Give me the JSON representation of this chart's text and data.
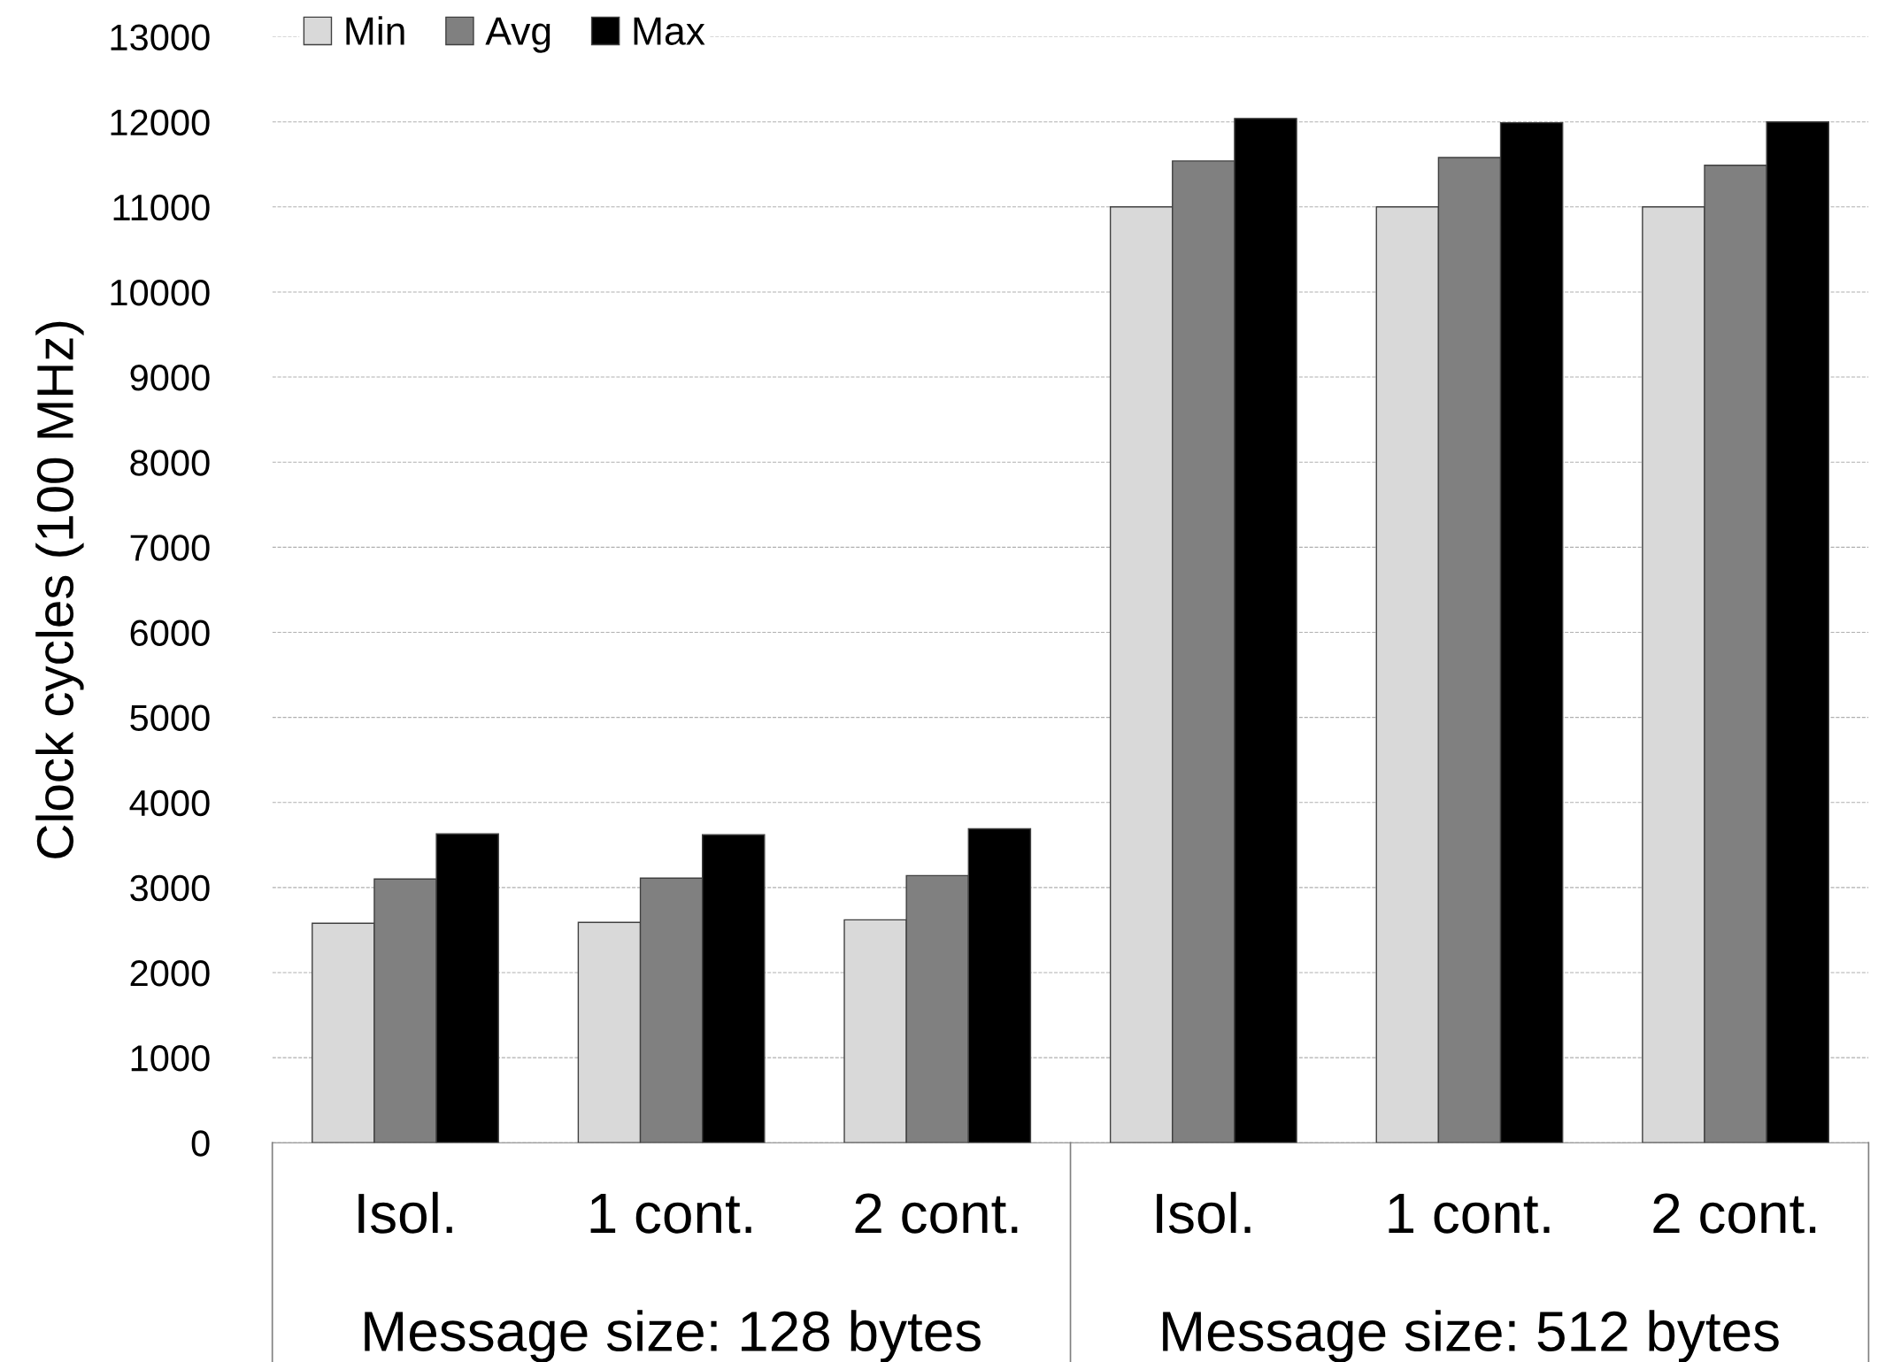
{
  "chart_data": {
    "type": "bar",
    "ylabel": "Clock cycles (100 MHz)",
    "categories": [
      "Isol.",
      "1 cont.",
      "2 cont.",
      "Isol.",
      "1 cont.",
      "2 cont."
    ],
    "series": [
      {
        "name": "Min",
        "color": "#d9d9d9",
        "values": [
          2580,
          2590,
          2620,
          11000,
          11000,
          11000
        ]
      },
      {
        "name": "Avg",
        "color": "#808080",
        "values": [
          3100,
          3110,
          3140,
          11540,
          11580,
          11490
        ]
      },
      {
        "name": "Max",
        "color": "#000000",
        "values": [
          3630,
          3620,
          3690,
          12040,
          11990,
          12000
        ]
      }
    ],
    "annotations": [
      "Message size: 128 bytes",
      "Message size: 512 bytes"
    ],
    "ylim": [
      0,
      13000
    ],
    "yticks": [
      0,
      1000,
      2000,
      3000,
      4000,
      5000,
      6000,
      7000,
      8000,
      9000,
      10000,
      11000,
      12000,
      13000
    ],
    "grid": "y",
    "legend": "top left"
  }
}
